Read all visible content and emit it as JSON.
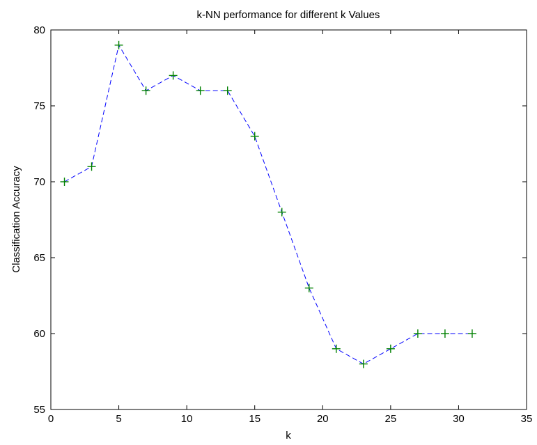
{
  "chart_data": {
    "type": "line",
    "title": "k-NN performance for different k Values",
    "xlabel": "k",
    "ylabel": "Classification Accuracy",
    "xlim": [
      0,
      35
    ],
    "ylim": [
      55,
      80
    ],
    "x_ticks": [
      0,
      5,
      10,
      15,
      20,
      25,
      30,
      35
    ],
    "y_ticks": [
      55,
      60,
      65,
      70,
      75,
      80
    ],
    "grid": false,
    "series": [
      {
        "x": [
          1,
          3,
          5,
          7,
          9,
          11,
          13,
          15,
          17,
          19,
          21,
          23,
          25,
          27,
          29,
          31
        ],
        "y": [
          70,
          71,
          79,
          76,
          77,
          76,
          76,
          73,
          68,
          63,
          59,
          58,
          59,
          60,
          60,
          60
        ],
        "line_color": "#0000ff",
        "line_style": "dashed",
        "marker": "+",
        "marker_color": "#008000"
      }
    ]
  }
}
